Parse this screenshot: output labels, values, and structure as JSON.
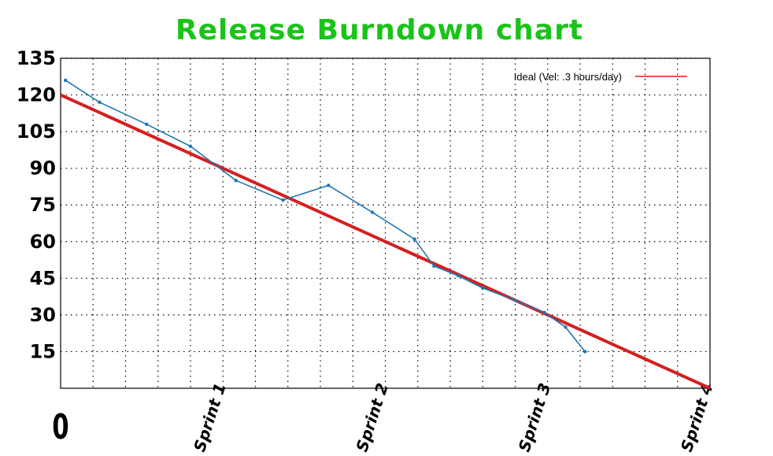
{
  "colors": {
    "title": "#19c419",
    "ideal": "#d42020",
    "actual": "#1f77b4",
    "grid": "#000000",
    "frame": "#000000"
  },
  "chart_data": {
    "type": "line",
    "title": "Release Burndown chart",
    "xlabel": "",
    "ylabel": "",
    "x_ticks": [
      "0",
      "Sprint 1",
      "Sprint 2",
      "Sprint 3",
      "Sprint 4"
    ],
    "x_tick_values": [
      0,
      1,
      2,
      3,
      4
    ],
    "xlim": [
      0,
      4
    ],
    "y_ticks": [
      15,
      30,
      45,
      60,
      75,
      90,
      105,
      120,
      135
    ],
    "ylim": [
      0,
      135
    ],
    "grid": true,
    "legend_position": "top-right",
    "series": [
      {
        "name": "Ideal (Vel: .3 hours/day)",
        "style": "thick-line",
        "points": [
          [
            0,
            120
          ],
          [
            4,
            0
          ]
        ]
      },
      {
        "name": "",
        "style": "line-with-markers",
        "points": [
          [
            0.03,
            126
          ],
          [
            0.24,
            117
          ],
          [
            0.53,
            108
          ],
          [
            0.8,
            99
          ],
          [
            1.08,
            85
          ],
          [
            1.37,
            77
          ],
          [
            1.65,
            83
          ],
          [
            1.92,
            72
          ],
          [
            2.18,
            61
          ],
          [
            2.3,
            50
          ],
          [
            2.45,
            46
          ],
          [
            2.6,
            41
          ],
          [
            2.8,
            36
          ],
          [
            2.98,
            31
          ],
          [
            3.11,
            25
          ],
          [
            3.23,
            15
          ]
        ]
      }
    ]
  }
}
